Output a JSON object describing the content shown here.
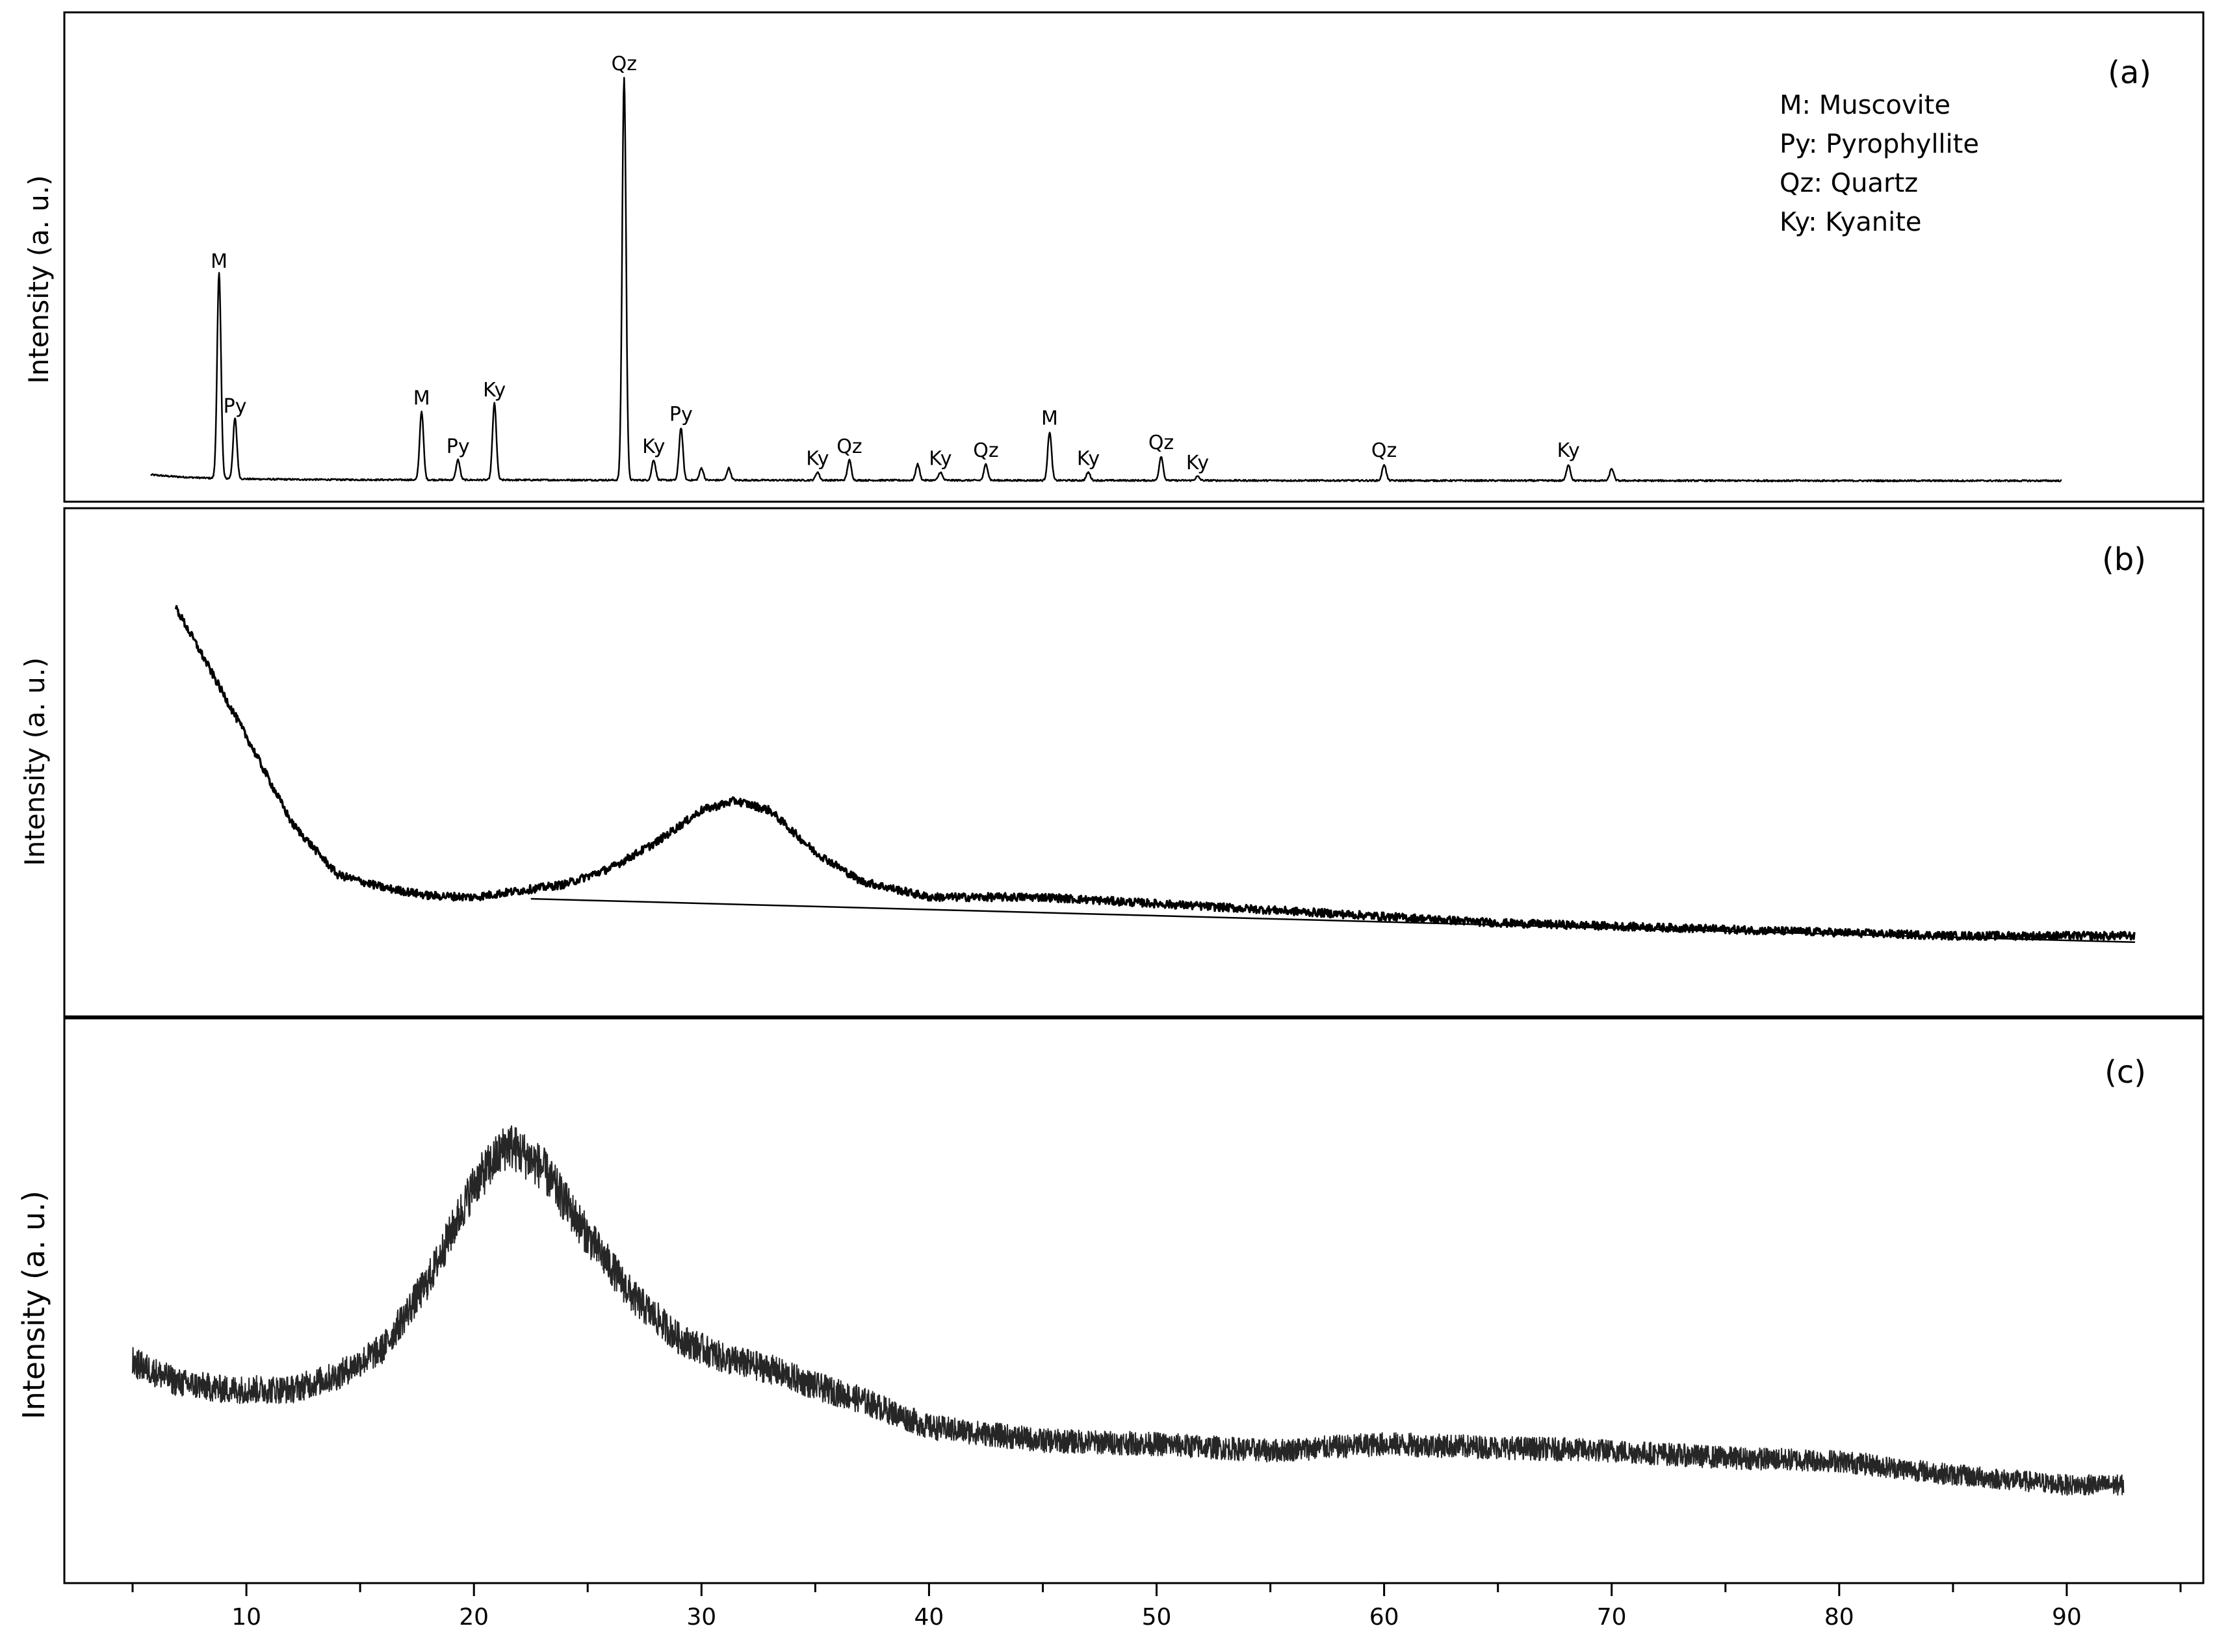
{
  "chart_data": [
    {
      "panel": "(a)",
      "type": "line",
      "ylabel": "Intensity (a. u.)",
      "xlim": [
        2,
        96
      ],
      "legend": {
        "placement": "top-right",
        "entries": [
          "M: Muscovite",
          "Py: Pyrophyllite",
          "Qz: Quartz",
          "Ky: Kyanite"
        ]
      },
      "peaks": [
        {
          "x": 8.8,
          "y": 0.51,
          "label": "M"
        },
        {
          "x": 9.5,
          "y": 0.15,
          "label": "Py"
        },
        {
          "x": 17.7,
          "y": 0.17,
          "label": "M"
        },
        {
          "x": 19.3,
          "y": 0.05,
          "label": "Py"
        },
        {
          "x": 20.9,
          "y": 0.19,
          "label": "Ky"
        },
        {
          "x": 26.6,
          "y": 1.0,
          "label": "Qz"
        },
        {
          "x": 27.9,
          "y": 0.05,
          "label": "Ky"
        },
        {
          "x": 29.1,
          "y": 0.13,
          "label": "Py"
        },
        {
          "x": 35.1,
          "y": 0.02,
          "label": "Ky"
        },
        {
          "x": 36.5,
          "y": 0.05,
          "label": "Qz"
        },
        {
          "x": 40.5,
          "y": 0.02,
          "label": "Ky"
        },
        {
          "x": 42.5,
          "y": 0.04,
          "label": "Qz"
        },
        {
          "x": 45.3,
          "y": 0.12,
          "label": "M"
        },
        {
          "x": 47.0,
          "y": 0.02,
          "label": "Ky"
        },
        {
          "x": 50.2,
          "y": 0.06,
          "label": "Qz"
        },
        {
          "x": 51.8,
          "y": 0.01,
          "label": "Ky"
        },
        {
          "x": 60.0,
          "y": 0.04,
          "label": "Qz"
        },
        {
          "x": 68.1,
          "y": 0.04,
          "label": "Ky"
        },
        {
          "x": 70.0,
          "y": 0.03,
          "label": ""
        },
        {
          "x": 39.5,
          "y": 0.04,
          "label": ""
        },
        {
          "x": 31.2,
          "y": 0.03,
          "label": ""
        },
        {
          "x": 30.0,
          "y": 0.03,
          "label": ""
        }
      ]
    },
    {
      "panel": "(b)",
      "type": "line",
      "ylabel": "Intensity (a. u.)",
      "xlim": [
        2,
        96
      ],
      "profile": {
        "x": [
          6.9,
          8,
          10,
          12,
          14,
          16,
          18,
          20,
          22,
          24,
          26,
          28,
          30,
          31.5,
          33,
          35,
          37,
          40,
          45,
          50,
          55,
          60,
          65,
          70,
          75,
          80,
          85,
          90,
          93
        ],
        "y": [
          1.0,
          0.86,
          0.6,
          0.33,
          0.17,
          0.13,
          0.105,
          0.1,
          0.12,
          0.14,
          0.19,
          0.27,
          0.37,
          0.4,
          0.37,
          0.24,
          0.15,
          0.1,
          0.1,
          0.08,
          0.06,
          0.04,
          0.02,
          0.01,
          0.0,
          -0.01,
          -0.02,
          -0.02,
          -0.02
        ]
      },
      "baseline": {
        "x": [
          22.5,
          93
        ],
        "y": [
          0.095,
          -0.04
        ]
      }
    },
    {
      "panel": "(c)",
      "type": "line",
      "ylabel": "Intensity (a. u.)",
      "xlim": [
        2,
        96
      ],
      "xticks": [
        10,
        20,
        30,
        40,
        50,
        60,
        70,
        80,
        90
      ],
      "profile": {
        "x": [
          5,
          7,
          9,
          12,
          14,
          16,
          18,
          20,
          21.5,
          23,
          25,
          27,
          29,
          31,
          33,
          35,
          37,
          40,
          45,
          50,
          55,
          60,
          65,
          70,
          75,
          80,
          85,
          90,
          92.5
        ],
        "y": [
          0.36,
          0.3,
          0.28,
          0.28,
          0.32,
          0.4,
          0.6,
          0.88,
          1.0,
          0.93,
          0.73,
          0.55,
          0.43,
          0.37,
          0.34,
          0.29,
          0.25,
          0.17,
          0.13,
          0.12,
          0.1,
          0.12,
          0.11,
          0.1,
          0.08,
          0.07,
          0.03,
          0.0,
          0.0
        ]
      }
    }
  ]
}
